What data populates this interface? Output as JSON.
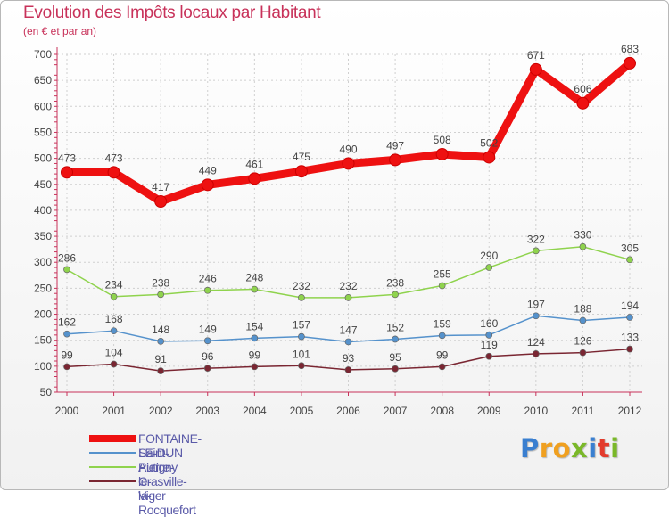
{
  "title": "Evolution des Impôts locaux par Habitant",
  "subtitle": "(en € et par an)",
  "logo": {
    "text": "Proxiti",
    "letters": [
      {
        "ch": "P",
        "color": "#3a7fd0"
      },
      {
        "ch": "r",
        "color": "#f0a020"
      },
      {
        "ch": "o",
        "color": "#f0a020"
      },
      {
        "ch": "x",
        "color": "#7ab829"
      },
      {
        "ch": "i",
        "color": "#3a7fd0"
      },
      {
        "ch": "t",
        "color": "#e33b2c"
      },
      {
        "ch": "i",
        "color": "#7ab829"
      }
    ]
  },
  "chart_data": {
    "type": "line",
    "title": "Evolution des Impôts locaux par Habitant",
    "subtitle": "(en € et par an)",
    "xlabel": "",
    "ylabel": "",
    "ylim": [
      50,
      700
    ],
    "yticks": [
      50,
      100,
      150,
      200,
      250,
      300,
      350,
      400,
      450,
      500,
      550,
      600,
      650,
      700
    ],
    "categories": [
      "2000",
      "2001",
      "2002",
      "2003",
      "2004",
      "2005",
      "2006",
      "2007",
      "2008",
      "2009",
      "2010",
      "2011",
      "2012"
    ],
    "legend_position": "bottom-left",
    "series": [
      {
        "name": "FONTAINE-LE-DUN",
        "color": "#ee1111",
        "bold": true,
        "values": [
          473,
          473,
          417,
          449,
          461,
          475,
          490,
          497,
          508,
          502,
          671,
          606,
          683
        ]
      },
      {
        "name": "Saint-Pierre-le-Viger",
        "color": "#5592cc",
        "bold": false,
        "values": [
          162,
          168,
          148,
          149,
          154,
          157,
          147,
          152,
          159,
          160,
          197,
          188,
          194
        ]
      },
      {
        "name": "Autigny",
        "color": "#8fd34d",
        "bold": false,
        "values": [
          286,
          234,
          238,
          246,
          248,
          232,
          232,
          238,
          255,
          290,
          322,
          330,
          305
        ]
      },
      {
        "name": "Crasville-la-Rocquefort",
        "color": "#7a2632",
        "bold": false,
        "values": [
          99,
          104,
          91,
          96,
          99,
          101,
          93,
          95,
          99,
          119,
          124,
          126,
          133
        ]
      }
    ]
  }
}
